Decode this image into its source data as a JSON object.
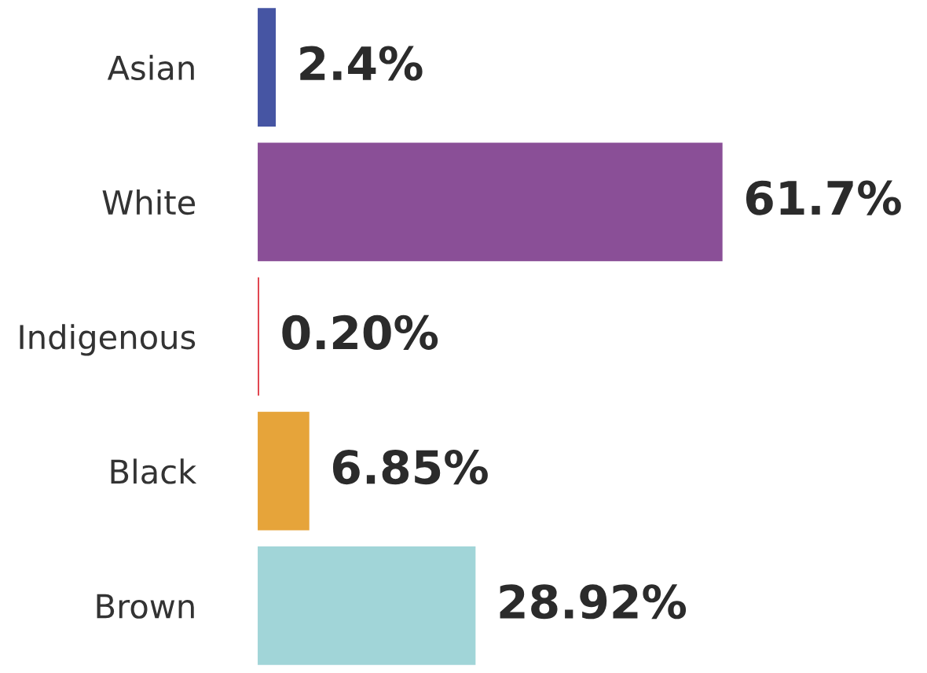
{
  "chart_data": {
    "type": "bar",
    "orientation": "horizontal",
    "categories": [
      "Asian",
      "White",
      "Indigenous",
      "Black",
      "Brown"
    ],
    "values": [
      2.4,
      61.7,
      0.2,
      6.85,
      28.92
    ],
    "colors": [
      "#4655a3",
      "#8a4f97",
      "#e0404a",
      "#e6a43a",
      "#a1d5d8"
    ],
    "value_labels": [
      "2.4%",
      "61.7%",
      "0.20%",
      "6.85%",
      "28.92%"
    ],
    "grid": false,
    "legend": false
  }
}
